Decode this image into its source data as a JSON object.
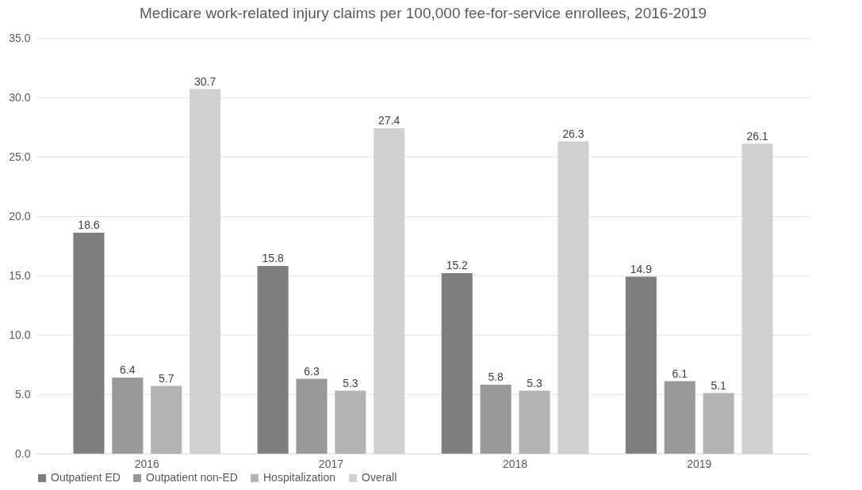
{
  "chart_data": {
    "type": "bar",
    "title": "Medicare work-related injury claims per 100,000 fee-for-service enrollees, 2016-2019",
    "categories": [
      "2016",
      "2017",
      "2018",
      "2019"
    ],
    "series": [
      {
        "name": "Outpatient ED",
        "color": "#7f7f7f",
        "values": [
          18.6,
          15.8,
          15.2,
          14.9
        ]
      },
      {
        "name": "Outpatient non-ED",
        "color": "#999999",
        "values": [
          6.4,
          6.3,
          5.8,
          6.1
        ]
      },
      {
        "name": "Hospitalization",
        "color": "#b3b3b3",
        "values": [
          5.7,
          5.3,
          5.3,
          5.1
        ]
      },
      {
        "name": "Overall",
        "color": "#d0d0d0",
        "values": [
          30.7,
          27.4,
          26.3,
          26.1
        ]
      }
    ],
    "ylim": [
      0,
      35
    ],
    "yticks": [
      {
        "value": 0,
        "label": "0.0"
      },
      {
        "value": 5,
        "label": "5.0"
      },
      {
        "value": 10,
        "label": "10.0"
      },
      {
        "value": 15,
        "label": "15.0"
      },
      {
        "value": 20,
        "label": "20.0"
      },
      {
        "value": 25,
        "label": "25.0"
      },
      {
        "value": 30,
        "label": "30.0"
      },
      {
        "value": 35,
        "label": "35.0"
      }
    ],
    "grid": "y",
    "legend": "bottom",
    "data_labels": true
  }
}
